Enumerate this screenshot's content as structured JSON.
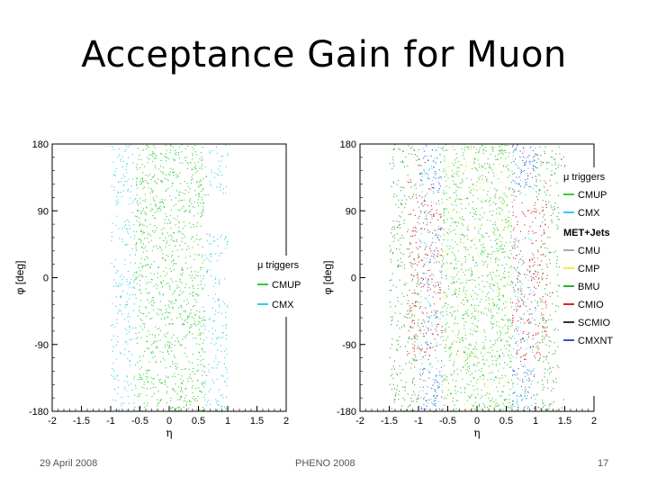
{
  "slide": {
    "title": "Acceptance Gain for Muon",
    "footer_left": "29 April 2008",
    "footer_center": "PHENO 2008",
    "footer_right": "17"
  },
  "colors": {
    "CMUP": "#33cc33",
    "CMX": "#33ccee",
    "CMU": "#aaaaaa",
    "CMP": "#eeee44",
    "BMU": "#33aa33",
    "CMIO": "#dd2222",
    "SCMIO": "#333333",
    "CMXNT": "#3355cc"
  },
  "chart_data": [
    {
      "type": "scatter",
      "xlabel": "η",
      "ylabel": "φ [deg]",
      "xlim": [
        -2,
        2
      ],
      "ylim": [
        -180,
        180
      ],
      "xticks": [
        "-2",
        "-1.5",
        "-1",
        "-0.5",
        "0",
        "0.5",
        "1",
        "1.5",
        "2"
      ],
      "yticks": [
        "180",
        "90",
        "0",
        "-90",
        "-180"
      ],
      "legend_title": "μ triggers",
      "legend": [
        {
          "label": "CMUP",
          "color": "#33cc33"
        },
        {
          "label": "CMX",
          "color": "#33ccee"
        }
      ],
      "legend_position": "right",
      "series": [
        {
          "name": "CMX",
          "eta_bands": [
            [
              -1.0,
              -0.6
            ],
            [
              0.6,
              1.0
            ]
          ]
        },
        {
          "name": "CMUP",
          "eta_bands": [
            [
              -0.6,
              0.6
            ]
          ]
        }
      ]
    },
    {
      "type": "scatter",
      "xlabel": "η",
      "ylabel": "φ [deg]",
      "xlim": [
        -2,
        2
      ],
      "ylim": [
        -180,
        180
      ],
      "xticks": [
        "-2",
        "-1.5",
        "-1",
        "-0.5",
        "0",
        "0.5",
        "1",
        "1.5",
        "2"
      ],
      "yticks": [
        "180",
        "90",
        "0",
        "-90",
        "-180"
      ],
      "legend_title": "μ triggers",
      "legend": [
        {
          "label": "CMUP",
          "color": "#33cc33"
        },
        {
          "label": "CMX",
          "color": "#33ccee"
        }
      ],
      "legend2_title": "MET+Jets",
      "legend2": [
        {
          "label": "CMU",
          "color": "#aaaaaa"
        },
        {
          "label": "CMP",
          "color": "#eeee44"
        },
        {
          "label": "BMU",
          "color": "#33aa33"
        },
        {
          "label": "CMIO",
          "color": "#dd2222"
        },
        {
          "label": "SCMIO",
          "color": "#333333"
        },
        {
          "label": "CMXNT",
          "color": "#3355cc"
        }
      ],
      "legend_position": "right",
      "series": [
        {
          "name": "BMU",
          "eta_bands": [
            [
              -1.5,
              -1.0
            ],
            [
              1.0,
              1.5
            ]
          ]
        },
        {
          "name": "CMX",
          "eta_bands": [
            [
              -1.0,
              -0.6
            ],
            [
              0.6,
              1.0
            ]
          ]
        },
        {
          "name": "CMUP",
          "eta_bands": [
            [
              -0.6,
              0.6
            ]
          ]
        },
        {
          "name": "CMIO",
          "eta_bands": [
            [
              -1.2,
              -0.6
            ],
            [
              0.6,
              1.2
            ]
          ]
        },
        {
          "name": "CMXNT",
          "eta_bands": [
            [
              -1.0,
              -0.6
            ],
            [
              0.6,
              1.0
            ]
          ]
        },
        {
          "name": "CMP",
          "eta_bands": [
            [
              -0.6,
              0.6
            ]
          ]
        }
      ]
    }
  ]
}
